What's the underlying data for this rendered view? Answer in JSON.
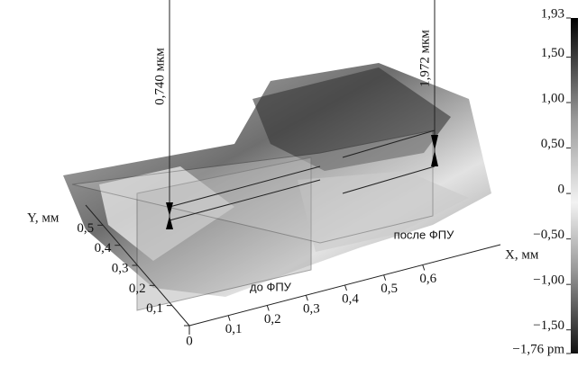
{
  "chart_data": {
    "type": "surface",
    "xlabel": "X, мм",
    "ylabel": "Y, мм",
    "xlim": [
      0,
      0.7
    ],
    "ylim": [
      0,
      0.55
    ],
    "xticks": [
      {
        "value": 0.1,
        "label": "0,1"
      },
      {
        "value": 0.2,
        "label": "0,2"
      },
      {
        "value": 0.3,
        "label": "0,3"
      },
      {
        "value": 0.4,
        "label": "0,4"
      },
      {
        "value": 0.5,
        "label": "0,5"
      },
      {
        "value": 0.6,
        "label": "0,6"
      }
    ],
    "yticks": [
      0,
      {
        "value": 0.1,
        "label": "0,1"
      },
      {
        "value": 0.2,
        "label": "0,2"
      },
      {
        "value": 0.3,
        "label": "0,3"
      },
      {
        "value": 0.4,
        "label": "0,4"
      },
      {
        "value": 0.5,
        "label": "0,5"
      }
    ],
    "colorbar": {
      "lim": [
        -1.76,
        1.93
      ],
      "ticks": [
        {
          "value": 1.93,
          "label": "1,93"
        },
        {
          "value": 1.5,
          "label": "1,50"
        },
        {
          "value": 1.0,
          "label": "1,00"
        },
        {
          "value": 0.5,
          "label": "0,50"
        },
        0,
        {
          "value": -0.5,
          "label": "−0,50"
        },
        {
          "value": -1.0,
          "label": "−1,00"
        },
        {
          "value": -1.5,
          "label": "−1,50"
        },
        {
          "value": -1.76,
          "label": "−1,76 pm"
        }
      ]
    },
    "annotations": [
      "0,740 мкм",
      "1,972 мкм",
      "до ФПУ",
      "после ФПУ"
    ]
  }
}
